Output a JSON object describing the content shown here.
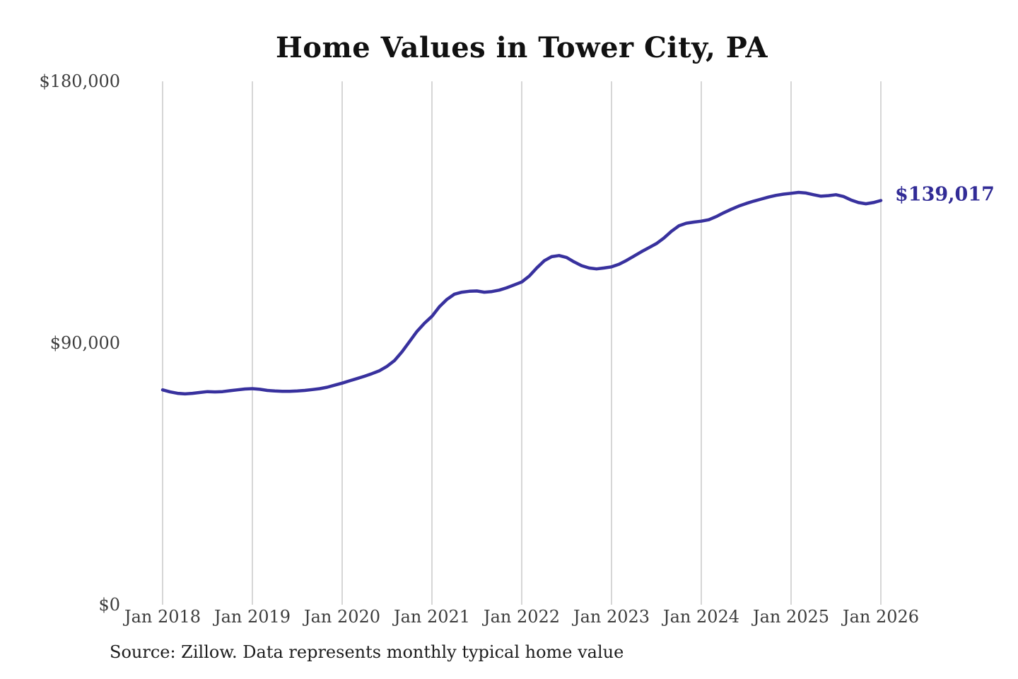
{
  "title": "Home Values in Tower City, PA",
  "annotation": {
    "label": "$139,017",
    "value": 139017
  },
  "source_note": "Source: Zillow. Data represents monthly typical home value",
  "colors": {
    "line": "#38319e",
    "annotation": "#322c96",
    "gridline": "#c9c9c9",
    "axis_text": "#3d3d3d",
    "title_text": "#111111",
    "background": "#ffffff"
  },
  "chart_data": {
    "type": "line",
    "title": "Home Values in Tower City, PA",
    "xlabel": "",
    "ylabel": "",
    "x_start": "2018-01",
    "x_end": "2026-01",
    "interval": "monthly",
    "ylim": [
      0,
      180000
    ],
    "grid": "vertical-only",
    "legend_position": "none",
    "y_ticks": [
      {
        "label": "$0",
        "value": 0
      },
      {
        "label": "$90,000",
        "value": 90000
      },
      {
        "label": "$180,000",
        "value": 180000
      }
    ],
    "x_ticks": [
      "Jan 2018",
      "Jan 2019",
      "Jan 2020",
      "Jan 2021",
      "Jan 2022",
      "Jan 2023",
      "Jan 2024",
      "Jan 2025",
      "Jan 2026"
    ],
    "series": [
      {
        "name": "Typical home value",
        "values": [
          73900,
          73200,
          72700,
          72500,
          72700,
          73000,
          73300,
          73200,
          73300,
          73600,
          73900,
          74200,
          74300,
          74100,
          73700,
          73500,
          73400,
          73400,
          73500,
          73700,
          74000,
          74300,
          74800,
          75500,
          76200,
          77000,
          77800,
          78600,
          79500,
          80500,
          82000,
          84000,
          87000,
          90500,
          94000,
          96800,
          99200,
          102500,
          105000,
          106800,
          107500,
          107800,
          107900,
          107500,
          107700,
          108200,
          109000,
          110000,
          111000,
          113000,
          115800,
          118300,
          119700,
          120100,
          119400,
          117900,
          116600,
          115800,
          115500,
          115800,
          116200,
          117100,
          118400,
          119900,
          121400,
          122800,
          124200,
          126100,
          128400,
          130300,
          131200,
          131600,
          131900,
          132400,
          133500,
          134800,
          136000,
          137100,
          138000,
          138800,
          139500,
          140200,
          140800,
          141200,
          141500,
          141800,
          141600,
          141000,
          140500,
          140700,
          141000,
          140400,
          139200,
          138300,
          137900,
          138300,
          139017
        ]
      }
    ]
  }
}
